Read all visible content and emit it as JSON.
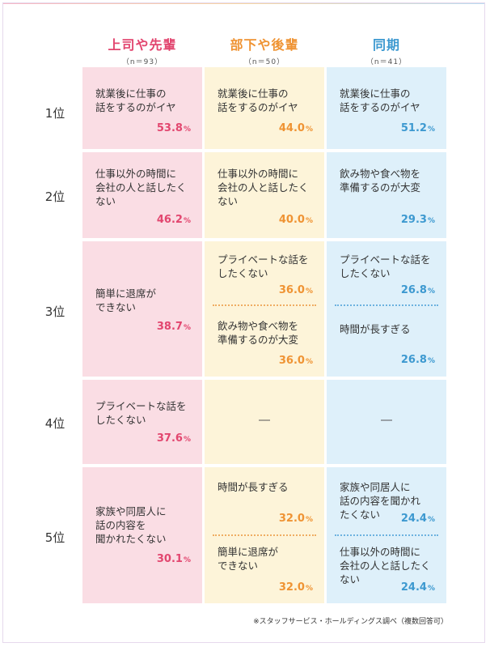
{
  "columns": [
    {
      "title": "上司や先輩",
      "n": "（n＝93）",
      "color": "#e2466f",
      "bg": "#fadde4"
    },
    {
      "title": "部下や後輩",
      "n": "（n＝50）",
      "color": "#ef9333",
      "bg": "#fdf4d9"
    },
    {
      "title": "同期",
      "n": "（n＝41）",
      "color": "#3d99d0",
      "bg": "#def0fa"
    }
  ],
  "ranks": [
    "1位",
    "2位",
    "3位",
    "4位",
    "5位"
  ],
  "cells": {
    "r1": {
      "c0": {
        "label": "就業後に仕事の\n話をするのがイヤ",
        "value": "53.8",
        "unit": "%"
      },
      "c1": {
        "label": "就業後に仕事の\n話をするのがイヤ",
        "value": "44.0",
        "unit": "%"
      },
      "c2": {
        "label": "就業後に仕事の\n話をするのがイヤ",
        "value": "51.2",
        "unit": "%"
      }
    },
    "r2": {
      "c0": {
        "label": "仕事以外の時間に\n会社の人と話したく\nない",
        "value": "46.2",
        "unit": "%"
      },
      "c1": {
        "label": "仕事以外の時間に\n会社の人と話したく\nない",
        "value": "40.0",
        "unit": "%"
      },
      "c2": {
        "label": "飲み物や食べ物を\n準備するのが大変",
        "value": "29.3",
        "unit": "%"
      }
    },
    "r3": {
      "c0": {
        "label": "簡単に退席が\nできない",
        "value": "38.7",
        "unit": "%"
      },
      "c1a": {
        "label": "プライベートな話を\nしたくない",
        "value": "36.0",
        "unit": "%"
      },
      "c1b": {
        "label": "飲み物や食べ物を\n準備するのが大変",
        "value": "36.0",
        "unit": "%"
      },
      "c2a": {
        "label": "プライベートな話を\nしたくない",
        "value": "26.8",
        "unit": "%"
      },
      "c2b": {
        "label": "時間が長すぎる",
        "value": "26.8",
        "unit": "%"
      }
    },
    "r4": {
      "c0": {
        "label": "プライベートな話を\nしたくない",
        "value": "37.6",
        "unit": "%"
      },
      "c1": {
        "dash": "―"
      },
      "c2": {
        "dash": "―"
      }
    },
    "r5": {
      "c0": {
        "label": "家族や同居人に\n話の内容を\n聞かれたくない",
        "value": "30.1",
        "unit": "%"
      },
      "c1a": {
        "label": "時間が長すぎる",
        "value": "32.0",
        "unit": "%"
      },
      "c1b": {
        "label": "簡単に退席が\nできない",
        "value": "32.0",
        "unit": "%"
      },
      "c2a": {
        "label": "家族や同居人に\n話の内容を聞かれ\nたくない",
        "value": "24.4",
        "unit": "%"
      },
      "c2b": {
        "label": "仕事以外の時間に\n会社の人と話したく\nない",
        "value": "24.4",
        "unit": "%"
      }
    }
  },
  "footnote": "※スタッフサービス・ホールディングス調べ（複数回答可）"
}
